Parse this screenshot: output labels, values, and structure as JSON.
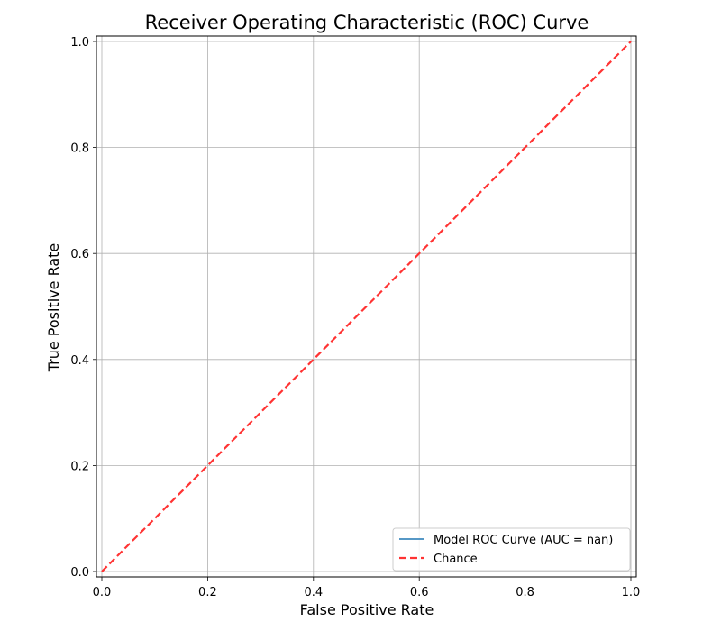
{
  "chart_data": {
    "type": "line",
    "title": "Receiver Operating Characteristic (ROC) Curve",
    "xlabel": "False Positive Rate",
    "ylabel": "True Positive Rate",
    "xlim": [
      0.0,
      1.0
    ],
    "ylim": [
      0.0,
      1.0
    ],
    "xticks": [
      "0.0",
      "0.2",
      "0.4",
      "0.6",
      "0.8",
      "1.0"
    ],
    "yticks": [
      "0.0",
      "0.2",
      "0.4",
      "0.6",
      "0.8",
      "1.0"
    ],
    "grid": true,
    "legend_position": "lower-right",
    "series": [
      {
        "name": "Model ROC Curve (AUC = nan)",
        "color": "#1f77b4",
        "style": "solid",
        "x": [],
        "y": []
      },
      {
        "name": "Chance",
        "color": "#ff3333",
        "style": "dashed",
        "x": [
          0.0,
          1.0
        ],
        "y": [
          0.0,
          1.0
        ]
      }
    ]
  }
}
